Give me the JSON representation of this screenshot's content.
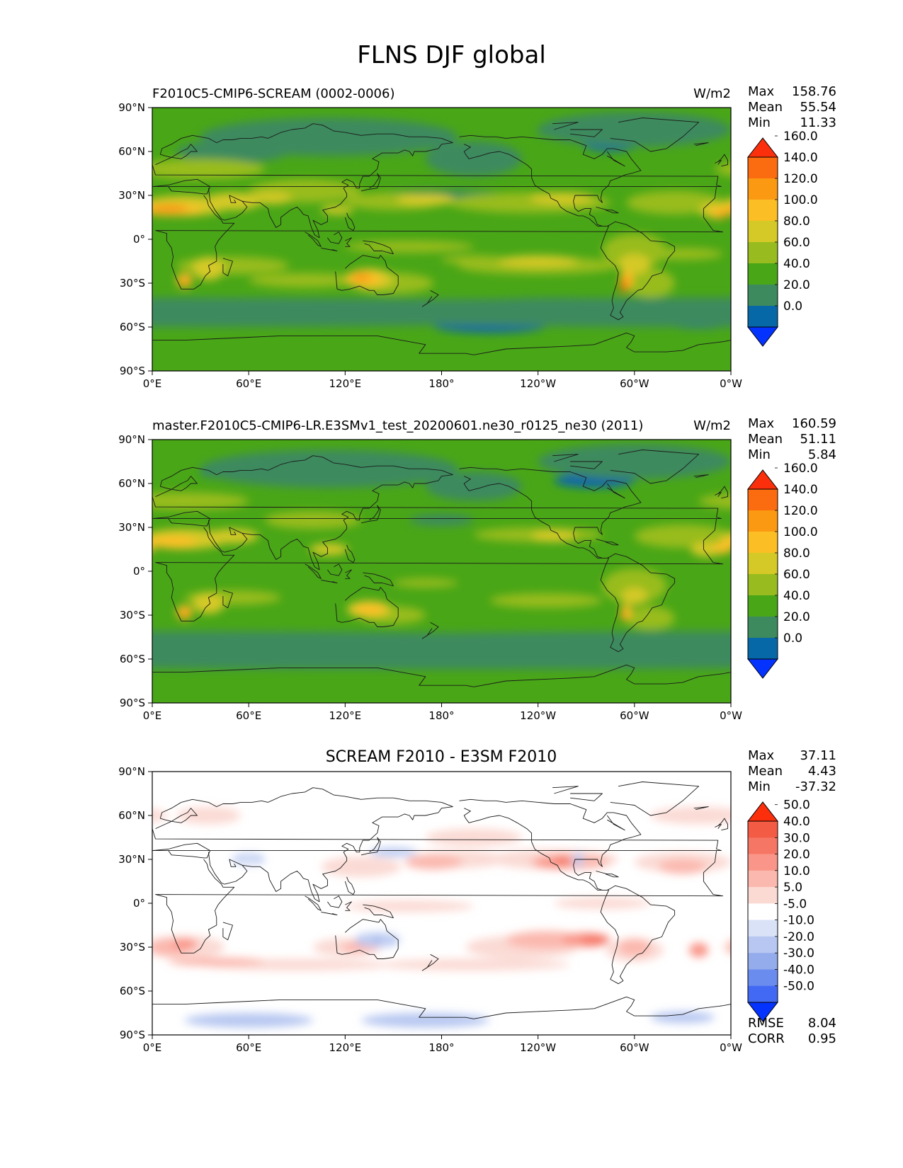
{
  "figure": {
    "title": "FLNS DJF global"
  },
  "colors": {
    "abs_levels": [
      "#0433ff",
      "#0768a7",
      "#3d8a5f",
      "#49a617",
      "#98bc1f",
      "#d4c926",
      "#fbbf25",
      "#fb9913",
      "#fb6b0f",
      "#fb2f0c"
    ],
    "diff_levels": [
      "#0433ff",
      "#4269f4",
      "#6b8cef",
      "#94aceb",
      "#b7c7f1",
      "#d9e2f7",
      "#ffffff",
      "#fbdad4",
      "#fbb8ae",
      "#f99689",
      "#f57665",
      "#f45b44",
      "#fb2f0c"
    ],
    "coast": "#1a1a1a"
  },
  "axis_labels": {
    "lat": [
      "90°N",
      "60°N",
      "30°N",
      "0°",
      "30°S",
      "60°S",
      "90°S"
    ],
    "lon": [
      "0°E",
      "60°E",
      "120°E",
      "180°",
      "120°W",
      "60°W",
      "0°W"
    ]
  },
  "chart_data": [
    {
      "type": "heatmap",
      "panel": "test",
      "title": "F2010C5-CMIP6-SCREAM (0002-0006)",
      "units": "W/m2",
      "stats": {
        "max_label": "Max",
        "max": "158.76",
        "mean_label": "Mean",
        "mean": "55.54",
        "min_label": "Min",
        "min": "11.33"
      },
      "colorbar_ticks": [
        "0.0",
        "20.0",
        "40.0",
        "60.0",
        "80.0",
        "100.0",
        "120.0",
        "140.0",
        "160.0"
      ],
      "levels": [
        0,
        20,
        40,
        60,
        80,
        100,
        120,
        140,
        160
      ],
      "xlim": [
        0,
        360
      ],
      "ylim": [
        -90,
        90
      ]
    },
    {
      "type": "heatmap",
      "panel": "reference",
      "title": "master.F2010C5-CMIP6-LR.E3SMv1_test_20200601.ne30_r0125_ne30 (2011)",
      "units": "W/m2",
      "stats": {
        "max_label": "Max",
        "max": "160.59",
        "mean_label": "Mean",
        "mean": "51.11",
        "min_label": "Min",
        "min": "5.84"
      },
      "colorbar_ticks": [
        "0.0",
        "20.0",
        "40.0",
        "60.0",
        "80.0",
        "100.0",
        "120.0",
        "140.0",
        "160.0"
      ],
      "levels": [
        0,
        20,
        40,
        60,
        80,
        100,
        120,
        140,
        160
      ],
      "xlim": [
        0,
        360
      ],
      "ylim": [
        -90,
        90
      ]
    },
    {
      "type": "heatmap",
      "panel": "difference",
      "title": "SCREAM F2010 - E3SM F2010",
      "units": "",
      "stats": {
        "max_label": "Max",
        "max": "37.11",
        "mean_label": "Mean",
        "mean": "4.43",
        "min_label": "Min",
        "min": "-37.32"
      },
      "colorbar_ticks": [
        "-50.0",
        "-40.0",
        "-30.0",
        "-20.0",
        "-10.0",
        "-5.0",
        "5.0",
        "10.0",
        "20.0",
        "30.0",
        "40.0",
        "50.0"
      ],
      "levels": [
        -50,
        -40,
        -30,
        -20,
        -10,
        -5,
        5,
        10,
        20,
        30,
        40,
        50
      ],
      "metrics": {
        "rmse_label": "RMSE",
        "rmse": "8.04",
        "corr_label": "CORR",
        "corr": "0.95"
      },
      "xlim": [
        0,
        360
      ],
      "ylim": [
        -90,
        90
      ]
    }
  ]
}
